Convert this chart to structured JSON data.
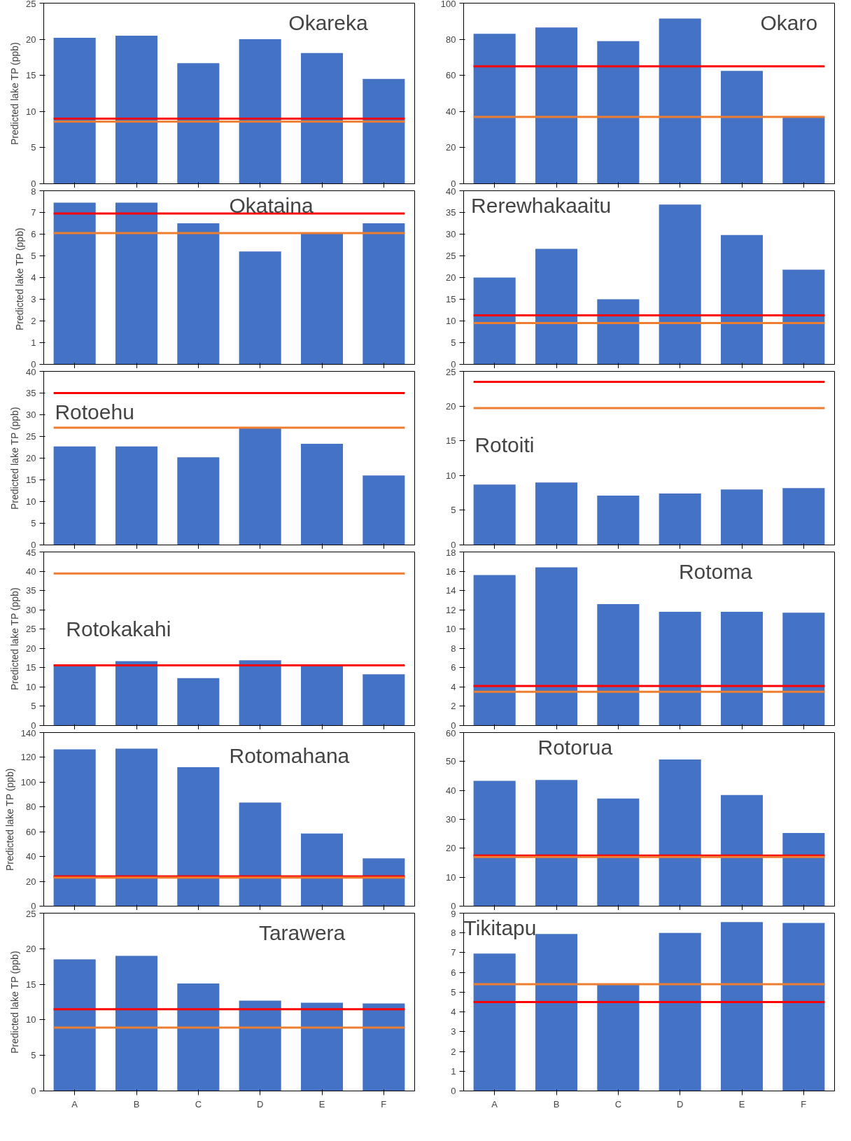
{
  "chart_data": [
    {
      "type": "bar",
      "title": "Okareka",
      "ylabel": "Predicted lake TP (ppb)",
      "categories": [
        null,
        null,
        null,
        null,
        null,
        null
      ],
      "values": [
        20.2,
        20.5,
        16.7,
        20.0,
        18.1,
        14.5
      ],
      "color": "#4472c4",
      "ylim": [
        0,
        25
      ],
      "yticks": [
        0,
        5,
        10,
        15,
        20,
        25
      ],
      "tick_labels": "y",
      "ref_lines": [
        {
          "axis": "y",
          "value": 9.0,
          "color": "#ff0000"
        },
        {
          "axis": "y",
          "value": 8.6,
          "color": "#ed7d31"
        }
      ]
    },
    {
      "type": "bar",
      "title": "Okaro",
      "categories": [
        null,
        null,
        null,
        null,
        null,
        null
      ],
      "values": [
        83,
        86.5,
        79,
        91.5,
        62.5,
        37
      ],
      "color": "#4472c4",
      "ylim": [
        0,
        100
      ],
      "yticks": [
        0,
        20,
        40,
        60,
        80,
        100
      ],
      "tick_labels": "y",
      "ref_lines": [
        {
          "axis": "y",
          "value": 65,
          "color": "#ff0000"
        },
        {
          "axis": "y",
          "value": 37,
          "color": "#ed7d31"
        }
      ]
    },
    {
      "type": "bar",
      "title": "Okataina",
      "ylabel": "Predicted lake TP  (ppb)",
      "categories": [
        null,
        null,
        null,
        null,
        null,
        null
      ],
      "values": [
        7.45,
        7.45,
        6.5,
        5.2,
        6.05,
        6.5
      ],
      "color": "#4472c4",
      "ylim": [
        0,
        8
      ],
      "yticks": [
        0,
        1,
        2,
        3,
        4,
        5,
        6,
        7,
        8
      ],
      "tick_labels": "y",
      "ref_lines": [
        {
          "axis": "y",
          "value": 6.95,
          "color": "#ff0000"
        },
        {
          "axis": "y",
          "value": 6.05,
          "color": "#ed7d31"
        }
      ]
    },
    {
      "type": "bar",
      "title": "Rerewhakaaitu",
      "categories": [
        null,
        null,
        null,
        null,
        null,
        null
      ],
      "values": [
        20,
        26.6,
        15,
        36.8,
        29.8,
        21.8
      ],
      "color": "#4472c4",
      "ylim": [
        0,
        40
      ],
      "yticks": [
        0,
        5,
        10,
        15,
        20,
        25,
        30,
        35,
        40
      ],
      "tick_labels": "y",
      "ref_lines": [
        {
          "axis": "y",
          "value": 11.3,
          "color": "#ff0000"
        },
        {
          "axis": "y",
          "value": 9.5,
          "color": "#ed7d31"
        }
      ]
    },
    {
      "type": "bar",
      "title": "Rotoehu",
      "ylabel": "Predicted lake TP (ppb)",
      "categories": [
        null,
        null,
        null,
        null,
        null,
        null
      ],
      "values": [
        22.7,
        22.7,
        20.2,
        27.0,
        23.3,
        16.0
      ],
      "color": "#4472c4",
      "ylim": [
        0,
        40
      ],
      "yticks": [
        0,
        5,
        10,
        15,
        20,
        25,
        30,
        35,
        40
      ],
      "tick_labels": "y",
      "ref_lines": [
        {
          "axis": "y",
          "value": 35,
          "color": "#ff0000"
        },
        {
          "axis": "y",
          "value": 27,
          "color": "#ed7d31"
        }
      ]
    },
    {
      "type": "bar",
      "title": "Rotoiti",
      "categories": [
        null,
        null,
        null,
        null,
        null,
        null
      ],
      "values": [
        8.7,
        9.0,
        7.1,
        7.4,
        8.0,
        8.2
      ],
      "color": "#4472c4",
      "ylim": [
        0,
        25
      ],
      "yticks": [
        0,
        5,
        10,
        15,
        20,
        25
      ],
      "tick_labels": "y",
      "ref_lines": [
        {
          "axis": "y",
          "value": 23.5,
          "color": "#ff0000"
        },
        {
          "axis": "y",
          "value": 19.7,
          "color": "#ed7d31"
        }
      ]
    },
    {
      "type": "bar",
      "title": "Rotokakahi",
      "ylabel": "Predicted lake TP (ppb)",
      "categories": [
        null,
        null,
        null,
        null,
        null,
        null
      ],
      "values": [
        15.5,
        16.7,
        12.3,
        16.9,
        15.6,
        13.3
      ],
      "color": "#4472c4",
      "ylim": [
        0,
        45
      ],
      "yticks": [
        0,
        5,
        10,
        15,
        20,
        25,
        30,
        35,
        40,
        45
      ],
      "tick_labels": "y",
      "ref_lines": [
        {
          "axis": "y",
          "value": 15.6,
          "color": "#ff0000"
        },
        {
          "axis": "y",
          "value": 39.4,
          "color": "#ed7d31"
        }
      ]
    },
    {
      "type": "bar",
      "title": "Rotoma",
      "categories": [
        null,
        null,
        null,
        null,
        null,
        null
      ],
      "values": [
        15.6,
        16.4,
        12.6,
        11.8,
        11.8,
        11.7
      ],
      "color": "#4472c4",
      "ylim": [
        0,
        18
      ],
      "yticks": [
        0,
        2,
        4,
        6,
        8,
        10,
        12,
        14,
        16,
        18
      ],
      "tick_labels": "y",
      "ref_lines": [
        {
          "axis": "y",
          "value": 4.1,
          "color": "#ff0000"
        },
        {
          "axis": "y",
          "value": 3.5,
          "color": "#ed7d31"
        }
      ]
    },
    {
      "type": "bar",
      "title": "Rotomahana",
      "ylabel": "Predicted lake TP (ppb)",
      "categories": [
        null,
        null,
        null,
        null,
        null,
        null
      ],
      "values": [
        126.5,
        127,
        112,
        83.5,
        58.5,
        38.5
      ],
      "color": "#4472c4",
      "ylim": [
        0,
        140
      ],
      "yticks": [
        0,
        20,
        40,
        60,
        80,
        100,
        120,
        140
      ],
      "tick_labels": "y",
      "ref_lines": [
        {
          "axis": "y",
          "value": 24,
          "color": "#ff0000"
        },
        {
          "axis": "y",
          "value": 23,
          "color": "#ed7d31"
        }
      ]
    },
    {
      "type": "bar",
      "title": "Rotorua",
      "categories": [
        null,
        null,
        null,
        null,
        null,
        null
      ],
      "values": [
        43.3,
        43.6,
        37.2,
        50.7,
        38.4,
        25.3
      ],
      "color": "#4472c4",
      "ylim": [
        0,
        60
      ],
      "yticks": [
        0,
        10,
        20,
        30,
        40,
        50,
        60
      ],
      "tick_labels": "y",
      "ref_lines": [
        {
          "axis": "y",
          "value": 17.5,
          "color": "#ff0000"
        },
        {
          "axis": "y",
          "value": 17,
          "color": "#ed7d31"
        }
      ]
    },
    {
      "type": "bar",
      "title": "Tarawera",
      "ylabel": "Predicted lake TP (ppb)",
      "categories": [
        "A",
        "B",
        "C",
        "D",
        "E",
        "F"
      ],
      "values": [
        18.5,
        19.0,
        15.1,
        12.7,
        12.4,
        12.3
      ],
      "color": "#4472c4",
      "ylim": [
        0,
        25
      ],
      "yticks": [
        0,
        5,
        10,
        15,
        20,
        25
      ],
      "ref_lines": [
        {
          "axis": "y",
          "value": 11.5,
          "color": "#ff0000"
        },
        {
          "axis": "y",
          "value": 8.9,
          "color": "#ed7d31"
        }
      ]
    },
    {
      "type": "bar",
      "title": "Tikitapu",
      "categories": [
        "A",
        "B",
        "C",
        "D",
        "E",
        "F"
      ],
      "values": [
        6.95,
        7.95,
        5.4,
        8.0,
        8.55,
        8.5
      ],
      "color": "#4472c4",
      "ylim": [
        0,
        9
      ],
      "yticks": [
        0,
        1,
        2,
        3,
        4,
        5,
        6,
        7,
        8,
        9
      ],
      "ref_lines": [
        {
          "axis": "y",
          "value": 4.5,
          "color": "#ff0000"
        },
        {
          "axis": "y",
          "value": 5.4,
          "color": "#ed7d31"
        }
      ]
    }
  ]
}
